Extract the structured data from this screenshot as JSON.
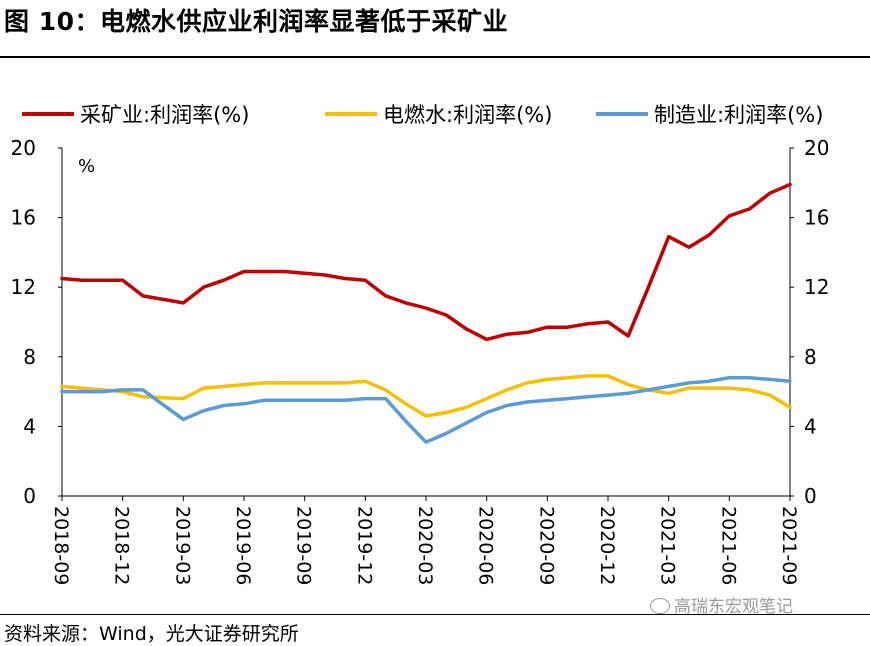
{
  "title": "图 10：电燃水供应业利润率显著低于采矿业",
  "source": "资料来源：Wind，光大证券研究所",
  "watermark": "高瑞东宏观笔记",
  "chart_data": {
    "type": "line",
    "unit_label": "%",
    "ylim": [
      0,
      20
    ],
    "yticks": [
      0,
      4,
      8,
      12,
      16,
      20
    ],
    "grid": false,
    "legend_position": "top",
    "x_tick_labels": [
      "2018-09",
      "2018-12",
      "2019-03",
      "2019-06",
      "2019-09",
      "2019-12",
      "2020-03",
      "2020-06",
      "2020-09",
      "2020-12",
      "2021-03",
      "2021-06",
      "2021-09"
    ],
    "x_months": [
      "2018-09",
      "2018-10",
      "2018-11",
      "2018-12",
      "2019-01",
      "2019-02",
      "2019-03",
      "2019-04",
      "2019-05",
      "2019-06",
      "2019-07",
      "2019-08",
      "2019-09",
      "2019-10",
      "2019-11",
      "2019-12",
      "2020-01",
      "2020-02",
      "2020-03",
      "2020-04",
      "2020-05",
      "2020-06",
      "2020-07",
      "2020-08",
      "2020-09",
      "2020-10",
      "2020-11",
      "2020-12",
      "2021-01",
      "2021-02",
      "2021-03",
      "2021-04",
      "2021-05",
      "2021-06",
      "2021-07",
      "2021-08",
      "2021-09"
    ],
    "series": [
      {
        "name": "采矿业:利润率(%)",
        "color": "#c00000",
        "values": [
          12.5,
          12.4,
          12.4,
          12.4,
          11.5,
          null,
          11.1,
          12.0,
          12.4,
          12.9,
          12.9,
          12.9,
          12.8,
          12.7,
          12.5,
          12.4,
          11.5,
          11.1,
          10.8,
          10.4,
          9.6,
          9.0,
          9.3,
          9.4,
          9.7,
          9.7,
          9.9,
          10.0,
          9.2,
          12.0,
          14.9,
          14.3,
          15.0,
          16.1,
          16.5,
          17.4,
          17.9
        ]
      },
      {
        "name": "电燃水:利润率(%)",
        "color": "#f5c000",
        "values": [
          6.3,
          6.2,
          6.1,
          6.0,
          5.7,
          null,
          5.6,
          6.2,
          6.3,
          6.4,
          6.5,
          6.5,
          6.5,
          6.5,
          6.5,
          6.6,
          6.1,
          5.3,
          4.6,
          4.8,
          5.1,
          5.6,
          6.1,
          6.5,
          6.7,
          6.8,
          6.9,
          6.9,
          6.4,
          6.1,
          5.9,
          6.2,
          6.2,
          6.2,
          6.1,
          5.8,
          5.1
        ]
      },
      {
        "name": "制造业:利润率(%)",
        "color": "#5b9bd5",
        "values": [
          6.0,
          6.0,
          6.0,
          6.1,
          6.1,
          null,
          4.4,
          4.9,
          5.2,
          5.3,
          5.5,
          5.5,
          5.5,
          5.5,
          5.5,
          5.6,
          5.6,
          4.3,
          3.1,
          3.6,
          4.2,
          4.8,
          5.2,
          5.4,
          5.5,
          5.6,
          5.7,
          5.8,
          5.9,
          6.1,
          6.3,
          6.5,
          6.6,
          6.8,
          6.8,
          6.7,
          6.6
        ]
      }
    ]
  }
}
